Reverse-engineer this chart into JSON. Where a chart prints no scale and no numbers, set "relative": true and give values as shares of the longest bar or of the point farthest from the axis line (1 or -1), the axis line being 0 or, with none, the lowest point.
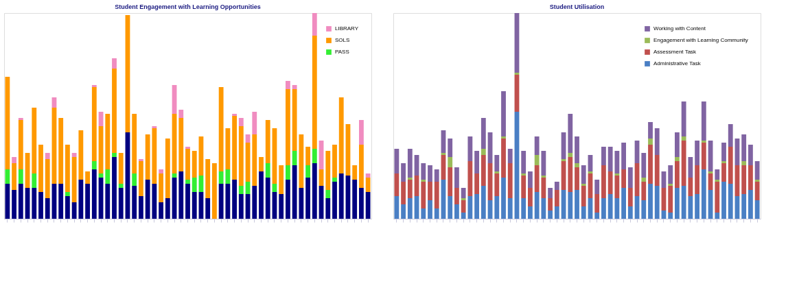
{
  "chart_data": [
    {
      "type": "bar",
      "title": "Student Engagement with Learning Opportunities",
      "stacked": true,
      "relative": true,
      "legend": "top right",
      "categories": [
        null,
        null,
        null,
        null,
        null,
        null,
        null,
        null,
        null,
        null,
        null,
        null,
        null,
        null,
        null,
        null,
        null,
        null,
        null,
        null,
        null,
        null,
        null,
        null,
        null,
        null,
        null,
        null,
        null,
        null,
        null,
        null,
        null,
        null,
        null,
        null,
        null,
        null,
        null,
        null,
        null,
        null,
        null,
        null,
        null,
        null,
        null,
        null,
        null,
        null,
        null,
        null,
        null,
        null,
        null
      ],
      "series": [
        {
          "color": "#000080",
          "values": [
            0.17,
            0.14,
            0.17,
            0.15,
            0.15,
            0.13,
            0.1,
            0.17,
            0.17,
            0.11,
            0.08,
            0.19,
            0.17,
            0.24,
            0.2,
            0.17,
            0.3,
            0.15,
            0.42,
            0.16,
            0.11,
            0.19,
            0.17,
            0.08,
            0.1,
            0.2,
            0.23,
            0.17,
            0.13,
            0.13,
            0.1,
            0,
            0.17,
            0.17,
            0.19,
            0.12,
            0.12,
            0.16,
            0.23,
            0.2,
            0.13,
            0.12,
            0.19,
            0.26,
            0.15,
            0.2,
            0.27,
            0.16,
            0.1,
            0.18,
            0.22,
            0.21,
            0.19,
            0.15,
            0.13
          ]
        },
        {
          "name": "PASS",
          "color": "#33ee33",
          "values": [
            0.07,
            0,
            0.07,
            0,
            0.07,
            0,
            0,
            0,
            0,
            0.02,
            0,
            0,
            0,
            0.04,
            0.02,
            0.07,
            0.02,
            0.02,
            0,
            0.06,
            0,
            0,
            0,
            0,
            0,
            0.02,
            0,
            0.02,
            0.07,
            0.08,
            0,
            0,
            0.06,
            0.07,
            0,
            0.04,
            0.06,
            0,
            0,
            0.07,
            0.04,
            0,
            0.07,
            0.07,
            0,
            0.06,
            0.07,
            0,
            0.04,
            0.02,
            0,
            0,
            0,
            0,
            0
          ]
        },
        {
          "name": "SOLS",
          "color": "#ff9900",
          "values": [
            0.45,
            0.13,
            0.24,
            0.17,
            0.32,
            0.23,
            0.19,
            0.37,
            0.32,
            0.23,
            0.22,
            0.24,
            0.06,
            0.36,
            0.23,
            0.27,
            0.41,
            0.15,
            0.57,
            0.29,
            0.17,
            0.22,
            0.27,
            0.14,
            0.29,
            0.29,
            0.26,
            0.15,
            0.13,
            0.19,
            0.19,
            0.27,
            0.41,
            0.2,
            0.31,
            0.29,
            0.19,
            0.25,
            0.07,
            0.21,
            0.27,
            0.14,
            0.37,
            0.3,
            0.26,
            0.09,
            0.55,
            0.08,
            0.19,
            0.16,
            0.37,
            0.25,
            0.07,
            0.21,
            0.07
          ]
        },
        {
          "name": "LIBRARY",
          "color": "#f08cc0",
          "values": [
            0,
            0.03,
            0.01,
            0,
            0,
            0,
            0.03,
            0.05,
            0,
            0,
            0.02,
            0,
            0,
            0.01,
            0.07,
            0,
            0.05,
            0,
            0,
            0,
            0.01,
            0,
            0.01,
            0.02,
            0,
            0.14,
            0.04,
            0.01,
            0,
            0,
            0,
            0,
            0,
            0,
            0.01,
            0.04,
            0.04,
            0.11,
            0,
            0,
            0,
            0,
            0.04,
            0.02,
            0,
            0,
            0.11,
            0.14,
            0,
            0,
            0,
            0,
            0,
            0.12,
            0.02
          ]
        }
      ]
    },
    {
      "type": "bar",
      "title": "Student Utilisation",
      "stacked": true,
      "relative": true,
      "legend": "top right",
      "categories": [
        null,
        null,
        null,
        null,
        null,
        null,
        null,
        null,
        null,
        null,
        null,
        null,
        null,
        null,
        null,
        null,
        null,
        null,
        null,
        null,
        null,
        null,
        null,
        null,
        null,
        null,
        null,
        null,
        null,
        null,
        null,
        null,
        null,
        null,
        null,
        null,
        null,
        null,
        null,
        null,
        null,
        null,
        null,
        null,
        null,
        null,
        null,
        null,
        null,
        null,
        null,
        null,
        null,
        null,
        null
      ],
      "series": [
        {
          "name": "Administrative Task",
          "color": "#4a7fc4",
          "values": [
            0.11,
            0.07,
            0.1,
            0.11,
            0.05,
            0.09,
            0.05,
            0.19,
            0.11,
            0.07,
            0.03,
            0.11,
            0.12,
            0.16,
            0.09,
            0.11,
            0.2,
            0.1,
            0.52,
            0.1,
            0.06,
            0.13,
            0.1,
            0.04,
            0.06,
            0.14,
            0.13,
            0.14,
            0.06,
            0.1,
            0.03,
            0.1,
            0.12,
            0.1,
            0.15,
            0.06,
            0.11,
            0.09,
            0.17,
            0.16,
            0.04,
            0.03,
            0.15,
            0.16,
            0.11,
            0.12,
            0.24,
            0.14,
            0.03,
            0.18,
            0.17,
            0.11,
            0.12,
            0.14,
            0.09
          ]
        },
        {
          "name": "Assessment Task",
          "color": "#c0504d",
          "values": [
            0.11,
            0.11,
            0.09,
            0.1,
            0.13,
            0.09,
            0.13,
            0.12,
            0.14,
            0.08,
            0.06,
            0.17,
            0.1,
            0.15,
            0.18,
            0.11,
            0.19,
            0.17,
            0.18,
            0.11,
            0.09,
            0.13,
            0.1,
            0.06,
            0.08,
            0.14,
            0.17,
            0.11,
            0.1,
            0.12,
            0.09,
            0.16,
            0.11,
            0.11,
            0.09,
            0.09,
            0.16,
            0.09,
            0.19,
            0.15,
            0.11,
            0.13,
            0.13,
            0.22,
            0.09,
            0.14,
            0.13,
            0.08,
            0.15,
            0.09,
            0.18,
            0.15,
            0.14,
            0.12,
            0.09
          ]
        },
        {
          "name": "Engagement with Learning Community",
          "color": "#9bbb59",
          "values": [
            0,
            0,
            0.01,
            0,
            0.01,
            0,
            0,
            0.01,
            0.05,
            0,
            0.01,
            0,
            0,
            0.03,
            0,
            0.01,
            0.01,
            0,
            0.01,
            0.01,
            0,
            0.05,
            0.01,
            0,
            0,
            0.01,
            0.02,
            0.02,
            0.01,
            0.01,
            0,
            0,
            0,
            0.01,
            0,
            0,
            0,
            0.02,
            0.03,
            0,
            0,
            0.01,
            0.02,
            0.02,
            0,
            0,
            0.01,
            0.01,
            0.01,
            0.01,
            0,
            0,
            0.02,
            0,
            0.01
          ]
        },
        {
          "name": "Working with Content",
          "color": "#8064a2",
          "values": [
            0.12,
            0.09,
            0.14,
            0.1,
            0.08,
            0.08,
            0.06,
            0.11,
            0.09,
            0.1,
            0.05,
            0.12,
            0.11,
            0.15,
            0.15,
            0.08,
            0.22,
            0.07,
            0.29,
            0.11,
            0.08,
            0.09,
            0.12,
            0.05,
            0.04,
            0.13,
            0.19,
            0.13,
            0.09,
            0.08,
            0.07,
            0.09,
            0.12,
            0.11,
            0.13,
            0.1,
            0.11,
            0.12,
            0.08,
            0.13,
            0.08,
            0.09,
            0.12,
            0.17,
            0.1,
            0.12,
            0.19,
            0.15,
            0.05,
            0.09,
            0.11,
            0.13,
            0.13,
            0.1,
            0.09
          ]
        }
      ]
    }
  ]
}
